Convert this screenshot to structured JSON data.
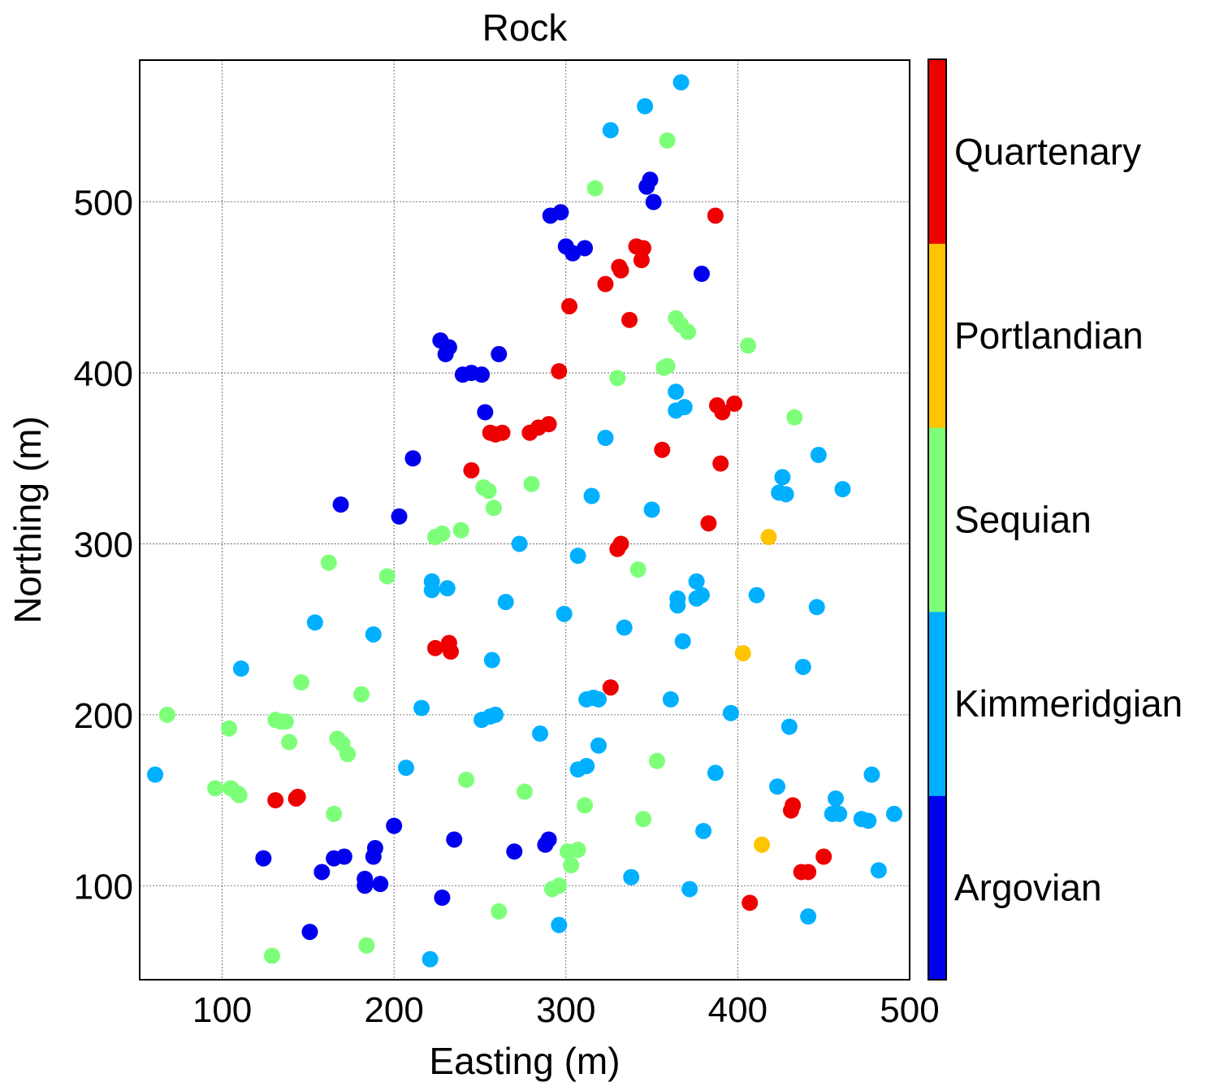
{
  "chart_data": {
    "type": "scatter",
    "title": "Rock",
    "xlabel": "Easting (m)",
    "ylabel": "Northing (m)",
    "xlim": [
      52,
      500
    ],
    "ylim": [
      45,
      583
    ],
    "xticks": [
      100,
      200,
      300,
      400,
      500
    ],
    "yticks": [
      100,
      200,
      300,
      400,
      500
    ],
    "grid": true,
    "colorbar": {
      "position": "right",
      "categories": [
        {
          "name": "Argovian",
          "color": "#0000ee"
        },
        {
          "name": "Kimmeridgian",
          "color": "#00b0ff"
        },
        {
          "name": "Sequian",
          "color": "#7dff7a"
        },
        {
          "name": "Portlandian",
          "color": "#ffc400"
        },
        {
          "name": "Quartenary",
          "color": "#ee0000"
        }
      ]
    },
    "series": [
      {
        "name": "Argovian",
        "points": [
          [
            347,
            509
          ],
          [
            349,
            513
          ],
          [
            351,
            500
          ],
          [
            291,
            492
          ],
          [
            297,
            494
          ],
          [
            300,
            474
          ],
          [
            304,
            470
          ],
          [
            311,
            473
          ],
          [
            379,
            458
          ],
          [
            227,
            419
          ],
          [
            232,
            415
          ],
          [
            230,
            411
          ],
          [
            261,
            411
          ],
          [
            240,
            399
          ],
          [
            245,
            400
          ],
          [
            251,
            399
          ],
          [
            253,
            377
          ],
          [
            211,
            350
          ],
          [
            169,
            323
          ],
          [
            203,
            316
          ],
          [
            200,
            135
          ],
          [
            189,
            122
          ],
          [
            188,
            117
          ],
          [
            235,
            127
          ],
          [
            270,
            120
          ],
          [
            288,
            124
          ],
          [
            290,
            127
          ],
          [
            171,
            117
          ],
          [
            165,
            116
          ],
          [
            124,
            116
          ],
          [
            158,
            108
          ],
          [
            183,
            104
          ],
          [
            183,
            100
          ],
          [
            192,
            101
          ],
          [
            228,
            93
          ],
          [
            151,
            73
          ]
        ]
      },
      {
        "name": "Kimmeridgian",
        "points": [
          [
            367,
            570
          ],
          [
            346,
            556
          ],
          [
            326,
            542
          ],
          [
            364,
            389
          ],
          [
            364,
            378
          ],
          [
            369,
            380
          ],
          [
            323,
            362
          ],
          [
            447,
            352
          ],
          [
            426,
            339
          ],
          [
            424,
            330
          ],
          [
            428,
            329
          ],
          [
            461,
            332
          ],
          [
            315,
            328
          ],
          [
            350,
            320
          ],
          [
            273,
            300
          ],
          [
            307,
            293
          ],
          [
            222,
            278
          ],
          [
            222,
            273
          ],
          [
            231,
            274
          ],
          [
            376,
            278
          ],
          [
            365,
            268
          ],
          [
            365,
            264
          ],
          [
            376,
            268
          ],
          [
            379,
            270
          ],
          [
            411,
            270
          ],
          [
            265,
            266
          ],
          [
            446,
            263
          ],
          [
            154,
            254
          ],
          [
            299,
            259
          ],
          [
            334,
            251
          ],
          [
            188,
            247
          ],
          [
            368,
            243
          ],
          [
            111,
            227
          ],
          [
            257,
            232
          ],
          [
            438,
            228
          ],
          [
            216,
            204
          ],
          [
            251,
            197
          ],
          [
            256,
            199
          ],
          [
            259,
            200
          ],
          [
            312,
            209
          ],
          [
            316,
            210
          ],
          [
            319,
            209
          ],
          [
            361,
            209
          ],
          [
            396,
            201
          ],
          [
            430,
            193
          ],
          [
            285,
            189
          ],
          [
            319,
            182
          ],
          [
            207,
            169
          ],
          [
            307,
            168
          ],
          [
            312,
            170
          ],
          [
            387,
            166
          ],
          [
            61,
            165
          ],
          [
            423,
            158
          ],
          [
            457,
            151
          ],
          [
            478,
            165
          ],
          [
            455,
            142
          ],
          [
            459,
            142
          ],
          [
            472,
            139
          ],
          [
            476,
            138
          ],
          [
            491,
            142
          ],
          [
            380,
            132
          ],
          [
            482,
            109
          ],
          [
            338,
            105
          ],
          [
            372,
            98
          ],
          [
            441,
            82
          ],
          [
            296,
            77
          ],
          [
            221,
            57
          ]
        ]
      },
      {
        "name": "Sequian",
        "points": [
          [
            359,
            536
          ],
          [
            317,
            508
          ],
          [
            364,
            432
          ],
          [
            367,
            428
          ],
          [
            371,
            424
          ],
          [
            406,
            416
          ],
          [
            357,
            403
          ],
          [
            359,
            404
          ],
          [
            330,
            397
          ],
          [
            433,
            374
          ],
          [
            252,
            333
          ],
          [
            255,
            331
          ],
          [
            280,
            335
          ],
          [
            258,
            321
          ],
          [
            224,
            304
          ],
          [
            228,
            306
          ],
          [
            239,
            308
          ],
          [
            162,
            289
          ],
          [
            196,
            281
          ],
          [
            342,
            285
          ],
          [
            146,
            219
          ],
          [
            181,
            212
          ],
          [
            68,
            200
          ],
          [
            104,
            192
          ],
          [
            131,
            197
          ],
          [
            134,
            196
          ],
          [
            137,
            196
          ],
          [
            139,
            184
          ],
          [
            167,
            186
          ],
          [
            170,
            183
          ],
          [
            173,
            177
          ],
          [
            353,
            173
          ],
          [
            96,
            157
          ],
          [
            105,
            157
          ],
          [
            109,
            154
          ],
          [
            110,
            153
          ],
          [
            242,
            162
          ],
          [
            276,
            155
          ],
          [
            165,
            142
          ],
          [
            311,
            147
          ],
          [
            345,
            139
          ],
          [
            301,
            120
          ],
          [
            307,
            121
          ],
          [
            303,
            112
          ],
          [
            292,
            98
          ],
          [
            296,
            100
          ],
          [
            261,
            85
          ],
          [
            184,
            65
          ],
          [
            129,
            59
          ]
        ]
      },
      {
        "name": "Portlandian",
        "points": [
          [
            418,
            304
          ],
          [
            403,
            236
          ],
          [
            414,
            124
          ]
        ]
      },
      {
        "name": "Quartenary",
        "points": [
          [
            387,
            492
          ],
          [
            341,
            474
          ],
          [
            345,
            473
          ],
          [
            344,
            466
          ],
          [
            331,
            462
          ],
          [
            332,
            460
          ],
          [
            323,
            452
          ],
          [
            302,
            439
          ],
          [
            337,
            431
          ],
          [
            296,
            401
          ],
          [
            388,
            381
          ],
          [
            391,
            377
          ],
          [
            398,
            382
          ],
          [
            256,
            365
          ],
          [
            259,
            364
          ],
          [
            263,
            365
          ],
          [
            279,
            365
          ],
          [
            284,
            368
          ],
          [
            290,
            370
          ],
          [
            245,
            343
          ],
          [
            356,
            355
          ],
          [
            390,
            347
          ],
          [
            383,
            312
          ],
          [
            330,
            297
          ],
          [
            332,
            300
          ],
          [
            224,
            239
          ],
          [
            232,
            242
          ],
          [
            233,
            237
          ],
          [
            326,
            216
          ],
          [
            131,
            150
          ],
          [
            144,
            152
          ],
          [
            143,
            151
          ],
          [
            432,
            147
          ],
          [
            431,
            144
          ],
          [
            437,
            108
          ],
          [
            441,
            108
          ],
          [
            450,
            117
          ],
          [
            407,
            90
          ]
        ]
      }
    ]
  }
}
